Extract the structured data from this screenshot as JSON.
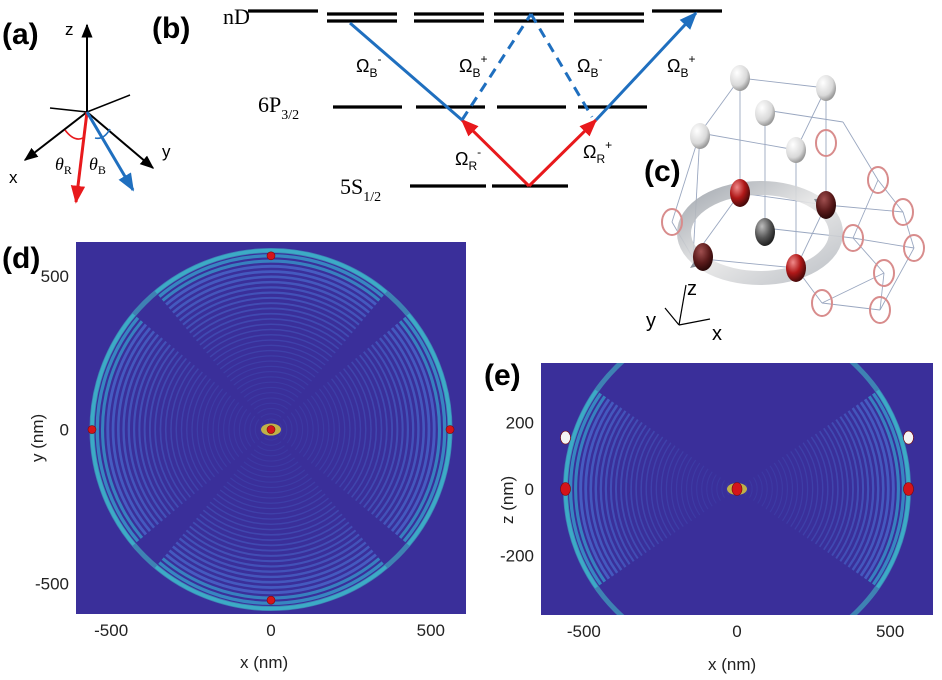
{
  "figure": {
    "panels": {
      "a": "(a)",
      "b": "(b)",
      "c": "(c)",
      "d": "(d)",
      "e": "(e)"
    },
    "panel_a": {
      "axes": {
        "x": "x",
        "y": "y",
        "z": "z"
      },
      "angle_red": {
        "sym": "θ",
        "sub": "R"
      },
      "angle_blue": {
        "sym": "θ",
        "sub": "B"
      }
    },
    "panel_b": {
      "levels": {
        "nD": "nD",
        "p": {
          "main": "6P",
          "sub": "3/2"
        },
        "s": {
          "main": "5S",
          "sub": "1/2"
        }
      },
      "rabi": {
        "sym": "Ω",
        "red_minus": {
          "sub": "R",
          "sup": "-"
        },
        "red_plus": {
          "sub": "R",
          "sup": "+"
        },
        "blue_minus_1": {
          "sub": "B",
          "sup": "-"
        },
        "blue_plus_1": {
          "sub": "B",
          "sup": "+"
        },
        "blue_minus_2": {
          "sub": "B",
          "sup": "-"
        },
        "blue_plus_2": {
          "sub": "B",
          "sup": "+"
        }
      }
    },
    "panel_c": {
      "axes": {
        "x": "x",
        "y": "y",
        "z": "z"
      }
    },
    "colors": {
      "red_beam": "#e8191c",
      "blue_beam": "#1f6fbf",
      "map_bg": "#3a2f9a",
      "atom_red": "#d4141a",
      "atom_white": "#f2f2f2"
    }
  },
  "chart_data": [
    {
      "type": "heatmap",
      "panel": "d",
      "xlabel": "x (nm)",
      "ylabel": "y (nm)",
      "xticks": [
        "-500",
        "0",
        "500"
      ],
      "yticks": [
        "500",
        "0",
        "-500"
      ],
      "xlim": [
        -610,
        610
      ],
      "ylim": [
        -600,
        610
      ],
      "atoms": [
        {
          "x": 0,
          "y": 565,
          "color": "red"
        },
        {
          "x": -560,
          "y": 0,
          "color": "red"
        },
        {
          "x": 560,
          "y": 0,
          "color": "red"
        },
        {
          "x": 0,
          "y": -555,
          "color": "red"
        },
        {
          "x": 0,
          "y": 0,
          "color": "red"
        }
      ]
    },
    {
      "type": "heatmap",
      "panel": "e",
      "xlabel": "x (nm)",
      "ylabel": "z (nm)",
      "xticks": [
        "-500",
        "0",
        "500"
      ],
      "yticks": [
        "200",
        "0",
        "-200"
      ],
      "xlim": [
        -640,
        640
      ],
      "ylim": [
        -380,
        380
      ],
      "atoms": [
        {
          "x": -560,
          "y": 155,
          "color": "white"
        },
        {
          "x": 560,
          "y": 155,
          "color": "white"
        },
        {
          "x": -560,
          "y": 0,
          "color": "red"
        },
        {
          "x": 560,
          "y": 0,
          "color": "red"
        },
        {
          "x": 0,
          "y": 0,
          "color": "red"
        }
      ]
    }
  ]
}
